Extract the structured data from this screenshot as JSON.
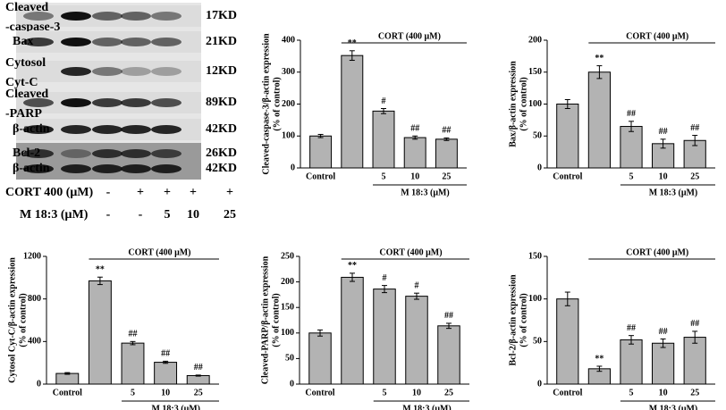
{
  "blot": {
    "rows": [
      {
        "label": [
          "Cleaved",
          "-caspase-3"
        ],
        "size": "17KD"
      },
      {
        "label": [
          "Bax"
        ],
        "size": "21KD"
      },
      {
        "label": [
          "Cytosol",
          "Cyt-C"
        ],
        "size": "12KD"
      },
      {
        "label": [
          "Cleaved",
          "-PARP"
        ],
        "size": "89KD"
      },
      {
        "label": [
          "β-actin"
        ],
        "size": "42KD"
      },
      {
        "label": [
          "Bcl-2"
        ],
        "size": "26KD"
      },
      {
        "label": [
          "β-actin"
        ],
        "size": "42KD"
      }
    ],
    "treatments": [
      {
        "label": "CORT 400 (μM)",
        "values": [
          "-",
          "+",
          "+",
          "+",
          "+"
        ]
      },
      {
        "label": "M 18:3  (μM)",
        "values": [
          "-",
          "-",
          "5",
          "10",
          "25"
        ]
      }
    ]
  },
  "chart_data": [
    {
      "type": "bar",
      "ylabel": [
        "Cleaved-caspase-3/β-actin expression",
        "(% of control)"
      ],
      "categories": [
        "Control",
        null,
        "5",
        "10",
        "25"
      ],
      "values": [
        100,
        352,
        178,
        95,
        90
      ],
      "errors": [
        5,
        15,
        8,
        5,
        4
      ],
      "annotations": [
        null,
        "**",
        "#",
        "##",
        "##"
      ],
      "group_label": "CORT (400 μM)",
      "subgroup_label": "M 18:3 (μM)",
      "ylim": [
        0,
        400
      ],
      "yticks": [
        0,
        100,
        200,
        300,
        400
      ],
      "color": "#b3b3b3"
    },
    {
      "type": "bar",
      "ylabel": [
        "Bax/β-actin expression",
        "(% of control)"
      ],
      "categories": [
        "Control",
        null,
        "5",
        "10",
        "25"
      ],
      "values": [
        100,
        150,
        65,
        38,
        43
      ],
      "errors": [
        7,
        10,
        8,
        7,
        8
      ],
      "annotations": [
        null,
        "**",
        "##",
        "##",
        "##"
      ],
      "group_label": "CORT (400 μM)",
      "subgroup_label": "M 18:3 (μM)",
      "ylim": [
        0,
        200
      ],
      "yticks": [
        0,
        50,
        100,
        150,
        200
      ],
      "color": "#b3b3b3"
    },
    {
      "type": "bar",
      "ylabel": [
        "Cytosol Cyt-C/β-actin expression",
        "(% of control)"
      ],
      "categories": [
        "Control",
        null,
        "5",
        "10",
        "25"
      ],
      "values": [
        100,
        970,
        385,
        205,
        80
      ],
      "errors": [
        8,
        35,
        15,
        10,
        5
      ],
      "annotations": [
        null,
        "**",
        "##",
        "##",
        "##"
      ],
      "group_label": "CORT (400 μM)",
      "subgroup_label": "M 18:3 (μM)",
      "ylim": [
        0,
        1200
      ],
      "yticks": [
        0,
        400,
        800,
        1200
      ],
      "color": "#b3b3b3"
    },
    {
      "type": "bar",
      "ylabel": [
        "Cleaved-PARP/β-actin expression",
        "(% of control)"
      ],
      "categories": [
        "Control",
        null,
        "5",
        "10",
        "25"
      ],
      "values": [
        100,
        209,
        186,
        172,
        114
      ],
      "errors": [
        6,
        8,
        7,
        6,
        5
      ],
      "annotations": [
        null,
        "**",
        "#",
        "#",
        "##"
      ],
      "group_label": "CORT (400 μM)",
      "subgroup_label": "M 18:3 (μM)",
      "ylim": [
        0,
        250
      ],
      "yticks": [
        0,
        50,
        100,
        150,
        200,
        250
      ],
      "color": "#b3b3b3"
    },
    {
      "type": "bar",
      "ylabel": [
        "Bcl-2/β-actin expression",
        "(% of control)"
      ],
      "categories": [
        "Control",
        null,
        "5",
        "10",
        "25"
      ],
      "values": [
        100,
        18,
        52,
        48,
        55
      ],
      "errors": [
        8,
        3,
        5,
        5,
        7
      ],
      "annotations": [
        null,
        "**",
        "##",
        "##",
        "##"
      ],
      "group_label": "CORT (400 μM)",
      "subgroup_label": "M 18:3 (μM)",
      "ylim": [
        0,
        150
      ],
      "yticks": [
        0,
        50,
        100,
        150
      ],
      "color": "#b3b3b3"
    }
  ]
}
